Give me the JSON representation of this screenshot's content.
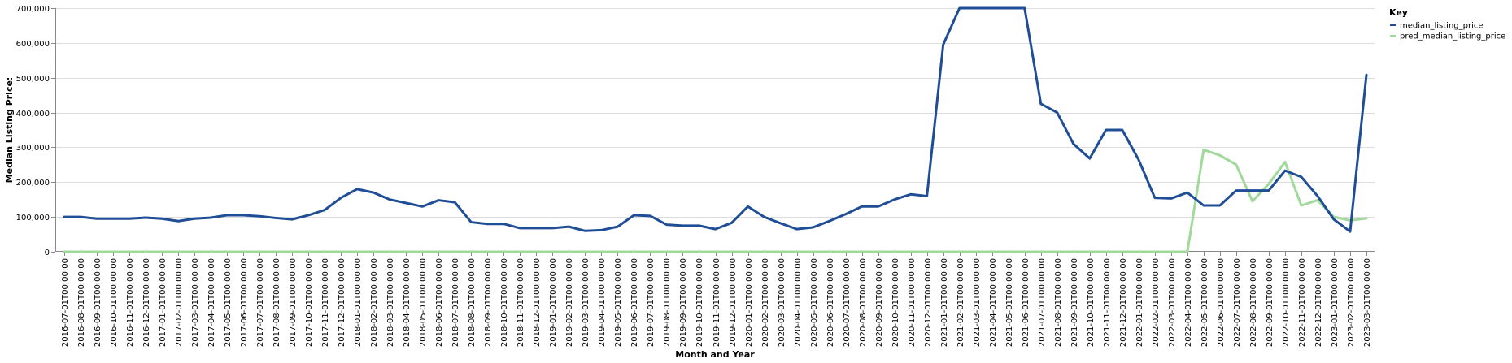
{
  "chart_data": {
    "type": "line",
    "xlabel": "Month and Year",
    "ylabel": "Median Listing Price:",
    "ylim": [
      0,
      700000
    ],
    "yticks": [
      "0",
      "100,000",
      "200,000",
      "300,000",
      "400,000",
      "500,000",
      "600,000",
      "700,000"
    ],
    "grid": "horizontal",
    "legend": {
      "title": "Key",
      "placement": "top-right"
    },
    "x": [
      "2016-07-01T00:00:00",
      "2016-08-01T00:00:00",
      "2016-09-01T00:00:00",
      "2016-10-01T00:00:00",
      "2016-11-01T00:00:00",
      "2016-12-01T00:00:00",
      "2017-01-01T00:00:00",
      "2017-02-01T00:00:00",
      "2017-03-01T00:00:00",
      "2017-04-01T00:00:00",
      "2017-05-01T00:00:00",
      "2017-06-01T00:00:00",
      "2017-07-01T00:00:00",
      "2017-08-01T00:00:00",
      "2017-09-01T00:00:00",
      "2017-10-01T00:00:00",
      "2017-11-01T00:00:00",
      "2017-12-01T00:00:00",
      "2018-01-01T00:00:00",
      "2018-02-01T00:00:00",
      "2018-03-01T00:00:00",
      "2018-04-01T00:00:00",
      "2018-05-01T00:00:00",
      "2018-06-01T00:00:00",
      "2018-07-01T00:00:00",
      "2018-08-01T00:00:00",
      "2018-09-01T00:00:00",
      "2018-10-01T00:00:00",
      "2018-11-01T00:00:00",
      "2018-12-01T00:00:00",
      "2019-01-01T00:00:00",
      "2019-02-01T00:00:00",
      "2019-03-01T00:00:00",
      "2019-04-01T00:00:00",
      "2019-05-01T00:00:00",
      "2019-06-01T00:00:00",
      "2019-07-01T00:00:00",
      "2019-08-01T00:00:00",
      "2019-09-01T00:00:00",
      "2019-10-01T00:00:00",
      "2019-11-01T00:00:00",
      "2019-12-01T00:00:00",
      "2020-01-01T00:00:00",
      "2020-02-01T00:00:00",
      "2020-03-01T00:00:00",
      "2020-04-01T00:00:00",
      "2020-05-01T00:00:00",
      "2020-06-01T00:00:00",
      "2020-07-01T00:00:00",
      "2020-08-01T00:00:00",
      "2020-09-01T00:00:00",
      "2020-10-01T00:00:00",
      "2020-11-01T00:00:00",
      "2020-12-01T00:00:00",
      "2021-01-01T00:00:00",
      "2021-02-01T00:00:00",
      "2021-03-01T00:00:00",
      "2021-04-01T00:00:00",
      "2021-05-01T00:00:00",
      "2021-06-01T00:00:00",
      "2021-07-01T00:00:00",
      "2021-08-01T00:00:00",
      "2021-09-01T00:00:00",
      "2021-10-01T00:00:00",
      "2021-11-01T00:00:00",
      "2021-12-01T00:00:00",
      "2022-01-01T00:00:00",
      "2022-02-01T00:00:00",
      "2022-03-01T00:00:00",
      "2022-04-01T00:00:00",
      "2022-05-01T00:00:00",
      "2022-06-01T00:00:00",
      "2022-07-01T00:00:00",
      "2022-08-01T00:00:00",
      "2022-09-01T00:00:00",
      "2022-10-01T00:00:00",
      "2022-11-01T00:00:00",
      "2022-12-01T00:00:00",
      "2023-01-01T00:00:00",
      "2023-02-01T00:00:00",
      "2023-03-01T00:00:00"
    ],
    "series": [
      {
        "name": "median_listing_price",
        "color": "#1f4e96",
        "values": [
          100000,
          100000,
          95000,
          95000,
          95000,
          98000,
          95000,
          88000,
          95000,
          98000,
          105000,
          105000,
          102000,
          97000,
          93000,
          105000,
          120000,
          155000,
          180000,
          170000,
          150000,
          140000,
          130000,
          148000,
          142000,
          85000,
          80000,
          80000,
          68000,
          68000,
          68000,
          72000,
          60000,
          62000,
          72000,
          105000,
          103000,
          78000,
          75000,
          75000,
          65000,
          83000,
          130000,
          100000,
          82000,
          65000,
          70000,
          88000,
          108000,
          130000,
          130000,
          150000,
          165000,
          160000,
          595000,
          700000,
          700000,
          700000,
          700000,
          700000,
          425000,
          400000,
          310000,
          268000,
          350000,
          350000,
          265000,
          155000,
          153000,
          170000,
          133000,
          133000,
          176000,
          176000,
          176000,
          233000,
          215000,
          160000,
          93000,
          58000,
          508000
        ]
      },
      {
        "name": "pred_median_listing_price",
        "color": "#a1d99b",
        "values": [
          0,
          0,
          0,
          0,
          0,
          0,
          0,
          0,
          0,
          0,
          0,
          0,
          0,
          0,
          0,
          0,
          0,
          0,
          0,
          0,
          0,
          0,
          0,
          0,
          0,
          0,
          0,
          0,
          0,
          0,
          0,
          0,
          0,
          0,
          0,
          0,
          0,
          0,
          0,
          0,
          0,
          0,
          0,
          0,
          0,
          0,
          0,
          0,
          0,
          0,
          0,
          0,
          0,
          0,
          0,
          0,
          0,
          0,
          0,
          0,
          0,
          0,
          0,
          0,
          0,
          0,
          0,
          0,
          0,
          0,
          293000,
          277000,
          250000,
          145000,
          195000,
          258000,
          133000,
          148000,
          100000,
          90000,
          96000
        ]
      }
    ]
  }
}
